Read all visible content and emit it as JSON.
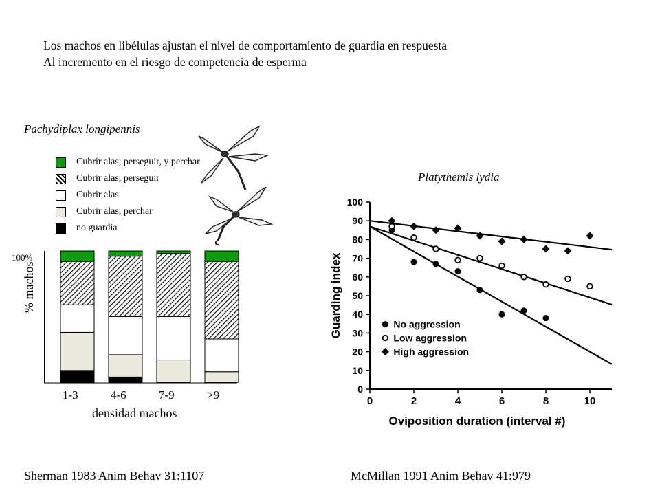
{
  "header": {
    "line1": "Los machos en libélulas ajustan el nivel de comportamiento de guardia en respuesta",
    "line2": "Al incremento en el riesgo de competencia de esperma"
  },
  "left_panel": {
    "species": "Pachydiplax longipennis",
    "citation": "Sherman 1983  Anim Behav 31:1107",
    "illustration_icon": "dragonfly-illustration",
    "colors": {
      "green": "#119911",
      "white": "#ffffff",
      "cream": "#ece9df",
      "black": "#000000",
      "hatch": "#000000"
    }
  },
  "right_panel": {
    "species": "Platythemis lydia",
    "citation": "McMillan 1991 Anim Behav 41:979"
  },
  "chart_data": [
    {
      "type": "bar",
      "stacked": true,
      "ylabel": "% machos",
      "xlabel": "densidad machos",
      "ytick_label": "100%",
      "ylim": [
        0,
        100
      ],
      "categories": [
        "1-3",
        "4-6",
        "7-9",
        ">9"
      ],
      "legend": [
        {
          "label": "Cubrir alas, perseguir, y perchar",
          "fill": "green"
        },
        {
          "label": "Cubrir alas, perseguir",
          "fill": "hatch"
        },
        {
          "label": "Cubrir alas",
          "fill": "white"
        },
        {
          "label": "Cubrir alas, perchar",
          "fill": "cream"
        },
        {
          "label": "no guardia",
          "fill": "black"
        }
      ],
      "series": [
        {
          "name": "no guardia",
          "values": [
            9,
            4,
            0,
            0
          ]
        },
        {
          "name": "Cubrir alas, perchar",
          "values": [
            29,
            17,
            17,
            8
          ]
        },
        {
          "name": "Cubrir alas",
          "values": [
            21,
            29,
            33,
            25
          ]
        },
        {
          "name": "Cubrir alas, perseguir",
          "values": [
            33,
            46,
            48,
            59
          ]
        },
        {
          "name": "Cubrir alas, perseguir, y perchar",
          "values": [
            8,
            4,
            2,
            8
          ]
        }
      ]
    },
    {
      "type": "scatter",
      "xlabel": "Oviposition duration (interval #)",
      "ylabel": "Guarding index",
      "xlim": [
        0,
        11
      ],
      "ylim": [
        0,
        100
      ],
      "xticks": [
        0,
        2,
        4,
        6,
        8,
        10
      ],
      "yticks": [
        0,
        10,
        20,
        30,
        40,
        50,
        60,
        70,
        80,
        90,
        100
      ],
      "legend_position": "bottom-left",
      "series": [
        {
          "name": "No aggression",
          "marker": "filled-circle",
          "x": [
            1,
            2,
            3,
            4,
            5,
            6,
            7,
            8
          ],
          "y": [
            85,
            68,
            67,
            63,
            53,
            40,
            42,
            38
          ],
          "fit": {
            "intercept": 87,
            "slope": -6.7
          }
        },
        {
          "name": "Low aggression",
          "marker": "open-circle",
          "x": [
            1,
            2,
            3,
            4,
            5,
            6,
            7,
            8,
            9,
            10
          ],
          "y": [
            87,
            81,
            75,
            69,
            70,
            66,
            60,
            56,
            59,
            55
          ],
          "fit": {
            "intercept": 87,
            "slope": -3.8
          }
        },
        {
          "name": "High aggression",
          "marker": "diamond",
          "x": [
            1,
            2,
            3,
            4,
            5,
            6,
            7,
            8,
            9,
            10
          ],
          "y": [
            90,
            87,
            85,
            86,
            82,
            79,
            80,
            75,
            74,
            82
          ],
          "fit": {
            "intercept": 90,
            "slope": -1.4
          }
        }
      ]
    }
  ]
}
